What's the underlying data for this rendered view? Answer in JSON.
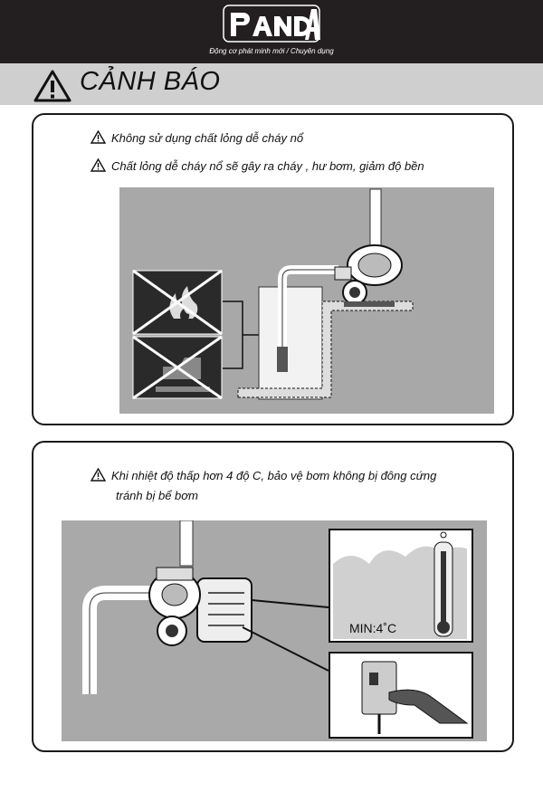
{
  "header": {
    "logo_text": "PandA",
    "tagline": "Động cơ phát minh mới / Chuyên dụng"
  },
  "warning": {
    "title": "CẢNH BÁO",
    "icon": "warning-triangle-icon"
  },
  "panel1": {
    "line1": "Không sử dụng chất lỏng dễ cháy nổ",
    "line2": "Chất lỏng dễ cháy nổ sẽ gây ra cháy , hư bơm, giảm độ bền"
  },
  "panel2": {
    "line1": "Khi nhiệt độ thấp hơn 4 độ C, bảo vệ bơm không bị đông cứng",
    "line2": "tránh bị bể bơm",
    "thermometer_label": "MIN:4˚C"
  },
  "colors": {
    "header_bg": "#231f20",
    "band_bg": "#cfcfcf",
    "illustration_bg": "#a9a9a9"
  }
}
